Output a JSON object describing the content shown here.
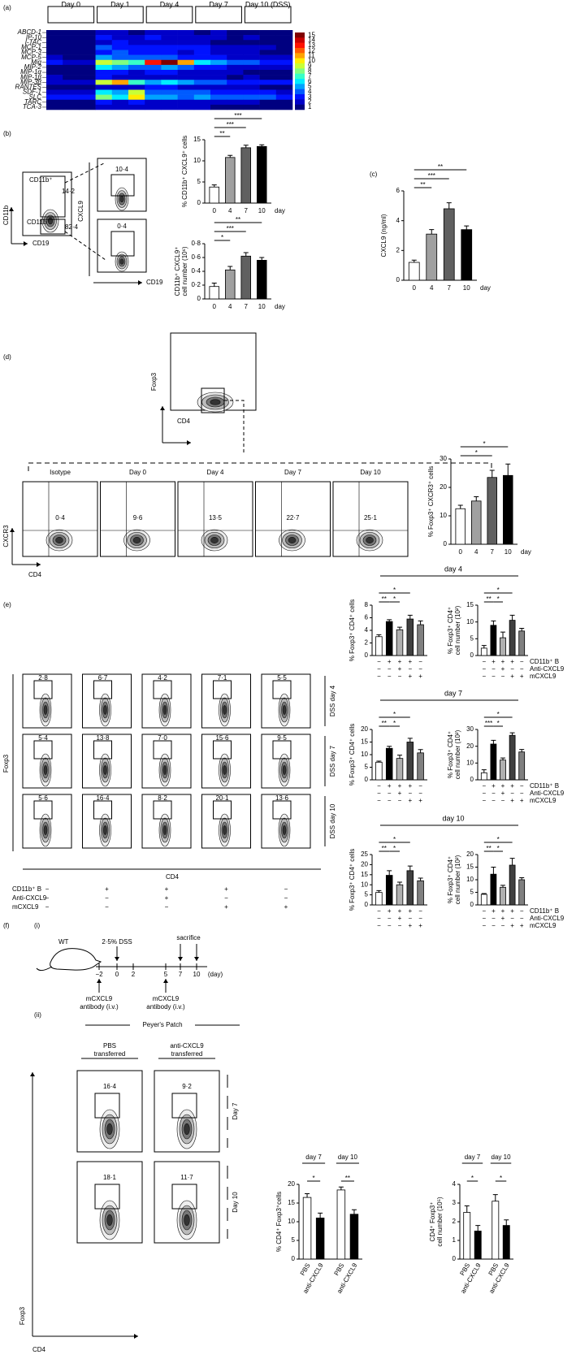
{
  "chart_data": [
    {
      "type": "heatmap",
      "days": [
        "Day 0",
        "Day 1",
        "Day 4",
        "Day 7",
        "Day 10 (DSS)"
      ],
      "genes": [
        "ABCD-1",
        "IP-10",
        "I-TAC",
        "MCP-1",
        "MCP-3",
        "MCP-5",
        "Mig",
        "MIP-2",
        "MIP-1α",
        "MIP-1β",
        "MIP-3β",
        "RANTES",
        "SDF-1",
        "SLC",
        "TARC",
        "TCA-3"
      ],
      "values": [
        [
          1,
          1,
          1,
          2,
          2,
          1,
          2,
          2,
          2,
          1,
          2,
          1,
          1,
          1,
          1
        ],
        [
          1,
          1,
          1,
          3,
          2,
          2,
          3,
          2,
          2,
          2,
          2,
          1,
          2,
          1,
          1
        ],
        [
          1,
          1,
          1,
          2,
          3,
          2,
          2,
          2,
          2,
          2,
          1,
          1,
          1,
          1,
          1
        ],
        [
          1,
          1,
          1,
          4,
          3,
          3,
          3,
          3,
          3,
          3,
          2,
          2,
          2,
          2,
          1
        ],
        [
          1,
          1,
          1,
          3,
          4,
          3,
          3,
          3,
          2,
          3,
          2,
          2,
          2,
          1,
          1
        ],
        [
          2,
          1,
          1,
          5,
          4,
          4,
          4,
          4,
          3,
          3,
          3,
          2,
          2,
          2,
          2
        ],
        [
          3,
          2,
          2,
          9,
          8,
          7,
          13,
          15,
          11,
          6,
          5,
          4,
          4,
          3,
          3
        ],
        [
          1,
          1,
          1,
          6,
          5,
          4,
          4,
          5,
          4,
          3,
          3,
          2,
          2,
          2,
          2
        ],
        [
          1,
          1,
          1,
          3,
          3,
          2,
          3,
          3,
          2,
          2,
          2,
          2,
          1,
          1,
          1
        ],
        [
          2,
          1,
          1,
          3,
          2,
          2,
          2,
          2,
          2,
          2,
          2,
          1,
          2,
          1,
          1
        ],
        [
          2,
          2,
          2,
          9,
          11,
          7,
          5,
          6,
          5,
          4,
          4,
          3,
          3,
          3,
          3
        ],
        [
          1,
          1,
          1,
          2,
          2,
          2,
          3,
          3,
          2,
          2,
          2,
          2,
          2,
          1,
          1
        ],
        [
          2,
          2,
          2,
          6,
          5,
          9,
          4,
          4,
          4,
          4,
          3,
          3,
          3,
          3,
          2
        ],
        [
          3,
          3,
          3,
          8,
          6,
          10,
          5,
          5,
          4,
          5,
          4,
          4,
          4,
          4,
          3
        ],
        [
          1,
          1,
          1,
          3,
          2,
          3,
          2,
          2,
          2,
          2,
          2,
          2,
          2,
          1,
          1
        ],
        [
          1,
          1,
          1,
          2,
          2,
          2,
          2,
          2,
          2,
          2,
          1,
          1,
          1,
          1,
          1
        ]
      ],
      "zlim": [
        1,
        15
      ],
      "colorbar": [
        15,
        14,
        13,
        12,
        11,
        10,
        9,
        8,
        7,
        6,
        5,
        4,
        3,
        2,
        1
      ]
    },
    {
      "type": "bar",
      "ylabel": [
        "% CD11b⁺ CXCL9⁺ cells"
      ],
      "categories": [
        0,
        4,
        7,
        10
      ],
      "xlabel": "day",
      "values": [
        3.8,
        10.8,
        13.1,
        13.4
      ],
      "errors": [
        0.5,
        0.5,
        0.6,
        0.4
      ],
      "colors": [
        "#ffffff",
        "#a0a0a0",
        "#606060",
        "#000000"
      ],
      "ylim": [
        0,
        15
      ],
      "yticks": [
        0,
        5,
        10,
        15
      ],
      "significance": [
        "**",
        "***",
        "***"
      ]
    },
    {
      "type": "bar",
      "ylabel": [
        "CD11b⁺ CXCL9⁺",
        "cell number (10⁶)"
      ],
      "categories": [
        0,
        4,
        7,
        10
      ],
      "xlabel": "day",
      "values": [
        0.18,
        0.42,
        0.62,
        0.56
      ],
      "errors": [
        0.05,
        0.05,
        0.05,
        0.04
      ],
      "colors": [
        "#ffffff",
        "#a0a0a0",
        "#606060",
        "#000000"
      ],
      "ylim": [
        0,
        0.8
      ],
      "yticks": [
        0,
        {
          "value": 0.2,
          "label": "0·2"
        },
        {
          "value": 0.4,
          "label": "0·4"
        },
        {
          "value": 0.6,
          "label": "0·6"
        },
        {
          "value": 0.8,
          "label": "0·8"
        }
      ],
      "significance": [
        "*",
        "***",
        "**"
      ]
    },
    {
      "type": "bar",
      "ylabel": [
        "CXCL9 (ng/ml)"
      ],
      "categories": [
        0,
        4,
        7,
        10
      ],
      "xlabel": "day",
      "values": [
        1.2,
        3.1,
        4.8,
        3.4
      ],
      "errors": [
        0.15,
        0.3,
        0.4,
        0.25
      ],
      "colors": [
        "#ffffff",
        "#a0a0a0",
        "#606060",
        "#000000"
      ],
      "ylim": [
        0,
        6
      ],
      "yticks": [
        0,
        2,
        4,
        6
      ],
      "significance": [
        "**",
        "***",
        "**"
      ]
    },
    {
      "type": "bar",
      "ylabel": [
        "% Foxp3⁺ CXCR3⁺ cells"
      ],
      "categories": [
        0,
        4,
        7,
        10
      ],
      "xlabel": "day",
      "values": [
        12.5,
        15.2,
        23.5,
        24.2
      ],
      "errors": [
        1.2,
        1.5,
        2.5,
        4
      ],
      "colors": [
        "#ffffff",
        "#a0a0a0",
        "#606060",
        "#000000"
      ],
      "ylim": [
        0,
        30
      ],
      "yticks": [
        0,
        10,
        20,
        30
      ],
      "significance": [
        "*",
        "*"
      ]
    },
    {
      "type": "bar",
      "title": "day 4",
      "ylabel": [
        "% Foxp3⁺ CD4⁺ cells"
      ],
      "values": [
        3.0,
        5.4,
        4.1,
        5.8,
        4.9
      ],
      "errors": [
        0.3,
        0.3,
        0.4,
        0.6,
        0.6
      ],
      "colors": [
        "#ffffff",
        "#000000",
        "#b0b0b0",
        "#404040",
        "#808080"
      ],
      "ylim": [
        0,
        8
      ],
      "yticks": [
        0,
        2,
        4,
        6,
        8
      ],
      "significance": [
        "**",
        "*",
        "*"
      ],
      "signs": [
        [
          "−",
          "+",
          "+",
          "+",
          "−"
        ],
        [
          "−",
          "−",
          "+",
          "−",
          "−"
        ],
        [
          "−",
          "−",
          "−",
          "+",
          "+"
        ]
      ]
    },
    {
      "type": "bar",
      "ylabel": [
        "% Foxp3⁺ CD4⁺",
        "cell number (10²)"
      ],
      "values": [
        2.2,
        9.0,
        5.3,
        10.5,
        7.3
      ],
      "errors": [
        0.8,
        1.3,
        1.7,
        1.5,
        0.8
      ],
      "colors": [
        "#ffffff",
        "#000000",
        "#b0b0b0",
        "#404040",
        "#808080"
      ],
      "ylim": [
        0,
        15
      ],
      "yticks": [
        0,
        5,
        10,
        15
      ],
      "significance": [
        "**",
        "*",
        "*"
      ],
      "signs": [
        [
          "−",
          "+",
          "+",
          "+",
          "−"
        ],
        [
          "−",
          "−",
          "+",
          "−",
          "−"
        ],
        [
          "−",
          "−",
          "−",
          "+",
          "+"
        ]
      ]
    },
    {
      "type": "bar",
      "title": "day 7",
      "ylabel": [
        "% Foxp3⁺ CD4⁺ cells"
      ],
      "values": [
        7.0,
        12.5,
        8.5,
        15.0,
        10.7
      ],
      "errors": [
        0.4,
        0.8,
        1.3,
        1.5,
        1.3
      ],
      "colors": [
        "#ffffff",
        "#000000",
        "#b0b0b0",
        "#404040",
        "#808080"
      ],
      "ylim": [
        0,
        20
      ],
      "yticks": [
        0,
        5,
        10,
        15,
        20
      ],
      "significance": [
        "**",
        "*",
        "*"
      ],
      "signs": [
        [
          "−",
          "+",
          "+",
          "+",
          "−"
        ],
        [
          "−",
          "−",
          "+",
          "−",
          "−"
        ],
        [
          "−",
          "−",
          "−",
          "+",
          "+"
        ]
      ]
    },
    {
      "type": "bar",
      "ylabel": [
        "% Foxp3⁺ CD4⁺",
        "cell number (10²)"
      ],
      "values": [
        4.2,
        21.3,
        11.8,
        26.5,
        16.6
      ],
      "errors": [
        1.8,
        2.2,
        1.2,
        1.5,
        1.5
      ],
      "colors": [
        "#ffffff",
        "#000000",
        "#b0b0b0",
        "#404040",
        "#808080"
      ],
      "ylim": [
        0,
        30
      ],
      "yticks": [
        0,
        10,
        20,
        30
      ],
      "significance": [
        "***",
        "*",
        "*"
      ],
      "signs": [
        [
          "−",
          "+",
          "+",
          "+",
          "−"
        ],
        [
          "−",
          "−",
          "+",
          "−",
          "−"
        ],
        [
          "−",
          "−",
          "−",
          "+",
          "+"
        ]
      ]
    },
    {
      "type": "bar",
      "title": "day 10",
      "ylabel": [
        "% Foxp3⁺ CD4⁺ cells"
      ],
      "values": [
        6.2,
        14.7,
        10.0,
        17.0,
        12.0
      ],
      "errors": [
        0.9,
        2.3,
        1.3,
        2.3,
        1.3
      ],
      "colors": [
        "#ffffff",
        "#000000",
        "#b0b0b0",
        "#404040",
        "#808080"
      ],
      "ylim": [
        0,
        25
      ],
      "yticks": [
        0,
        5,
        10,
        15,
        20,
        25
      ],
      "significance": [
        "**",
        "*",
        "*"
      ],
      "signs": [
        [
          "−",
          "+",
          "+",
          "+",
          "−"
        ],
        [
          "−",
          "−",
          "+",
          "−",
          "−"
        ],
        [
          "−",
          "−",
          "−",
          "+",
          "+"
        ]
      ]
    },
    {
      "type": "bar",
      "ylabel": [
        "% Foxp3⁺ CD4⁺",
        "cell number (10²)"
      ],
      "values": [
        4.2,
        12.2,
        7.0,
        15.8,
        10.0
      ],
      "errors": [
        0.3,
        2.8,
        0.8,
        2.7,
        0.8
      ],
      "colors": [
        "#ffffff",
        "#000000",
        "#b0b0b0",
        "#404040",
        "#808080"
      ],
      "ylim": [
        0,
        20
      ],
      "yticks": [
        0,
        5,
        10,
        15,
        20
      ],
      "significance": [
        "**",
        "*",
        "*"
      ],
      "signs": [
        [
          "−",
          "+",
          "+",
          "+",
          "−"
        ],
        [
          "−",
          "−",
          "+",
          "−",
          "−"
        ],
        [
          "−",
          "−",
          "−",
          "+",
          "+"
        ]
      ]
    },
    {
      "type": "bar",
      "ylabel": [
        "% CD4⁺ Foxp3⁺cells"
      ],
      "groups": [
        "day 7",
        "day 10"
      ],
      "categories": [
        "PBS",
        "anti-CXCL9",
        "PBS",
        "anti-CXCL9"
      ],
      "values": [
        16.5,
        11.0,
        18.5,
        12.0
      ],
      "errors": [
        1.0,
        1.3,
        0.8,
        1.2
      ],
      "colors": [
        "#ffffff",
        "#000000",
        "#ffffff",
        "#000000"
      ],
      "ylim": [
        0,
        20
      ],
      "yticks": [
        0,
        5,
        10,
        15,
        20
      ],
      "significance": [
        "*",
        "**"
      ]
    },
    {
      "type": "bar",
      "ylabel": [
        "CD4⁺ Foxp3⁺",
        "cell number (10⁵)"
      ],
      "groups": [
        "day 7",
        "day 10"
      ],
      "categories": [
        "PBS",
        "anti-CXCL9",
        "PBS",
        "anti-CXCL9"
      ],
      "values": [
        2.5,
        1.5,
        3.1,
        1.8
      ],
      "errors": [
        0.35,
        0.3,
        0.35,
        0.3
      ],
      "colors": [
        "#ffffff",
        "#000000",
        "#ffffff",
        "#000000"
      ],
      "ylim": [
        0,
        4
      ],
      "yticks": [
        0,
        1,
        2,
        3,
        4
      ],
      "significance": [
        "*",
        "*"
      ]
    }
  ],
  "panels": {
    "a": {
      "label": "(a)"
    },
    "b": {
      "label": "(b)",
      "y_axis": "CD11b",
      "x_axis": "CD19",
      "gate_names": [
        "CD11b⁺",
        "CD11b⁻"
      ],
      "gate_values": [
        "14·2",
        "82·4"
      ],
      "gated_y_axis": "CXCL9",
      "gated_x_axis": "CD19",
      "gated_values": [
        "10·4",
        "0·4"
      ]
    },
    "c": {
      "label": "(c)"
    },
    "d": {
      "label": "(d)",
      "gating_y_axis": "Foxp3",
      "gating_x_axis": "CD4",
      "groups": [
        "Isotype",
        "Day 0",
        "Day 4",
        "Day 7",
        "Day 10"
      ],
      "values": [
        "0·4",
        "9·6",
        "13·5",
        "22·7",
        "25·1"
      ],
      "y_axis": "CXCR3",
      "x_axis": "CD4"
    },
    "e": {
      "label": "(e)",
      "values": [
        [
          "2·8",
          "6·7",
          "4·2",
          "7·1",
          "5·5"
        ],
        [
          "5·4",
          "13·8",
          "7·0",
          "15·6",
          "9·5"
        ],
        [
          "5·6",
          "16·4",
          "8·2",
          "20·1",
          "13·6"
        ]
      ],
      "rows": [
        "DSS day 4",
        "DSS day 7",
        "DSS day 10"
      ],
      "y_axis": "Foxp3",
      "x_axis": "CD4",
      "conditions": [
        {
          "name": "CD11b⁺ B",
          "signs": [
            "−",
            "+",
            "+",
            "+",
            "−"
          ]
        },
        {
          "name": "Anti-CXCL9",
          "signs": [
            "−",
            "−",
            "+",
            "−",
            "−"
          ]
        },
        {
          "name": "mCXCL9",
          "signs": [
            "−",
            "−",
            "−",
            "+",
            "+"
          ]
        }
      ]
    },
    "f": {
      "label": "(f)",
      "sub1": "(i)",
      "mouse": "WT",
      "dss": "2·5% DSS",
      "sacrifice": "sacrifice",
      "timeline": [
        "−2",
        "0",
        "2",
        "5",
        "7",
        "10",
        "(day)"
      ],
      "injections": [
        [
          "mCXCL9",
          "antibody (i.v.)"
        ],
        [
          "mCXCL9",
          "antibody (i.v.)"
        ]
      ],
      "sub2": "(ii)",
      "tissue": "Peyer's Patch",
      "groups": [
        [
          "PBS",
          "transferred"
        ],
        [
          "anti-CXCL9",
          "transferred"
        ]
      ],
      "values": [
        [
          "16·4",
          "9·2"
        ],
        [
          "18·1",
          "11·7"
        ]
      ],
      "rows": [
        "Day 7",
        "Day 10"
      ],
      "y_axis": "Foxp3",
      "x_axis": "CD4"
    }
  }
}
